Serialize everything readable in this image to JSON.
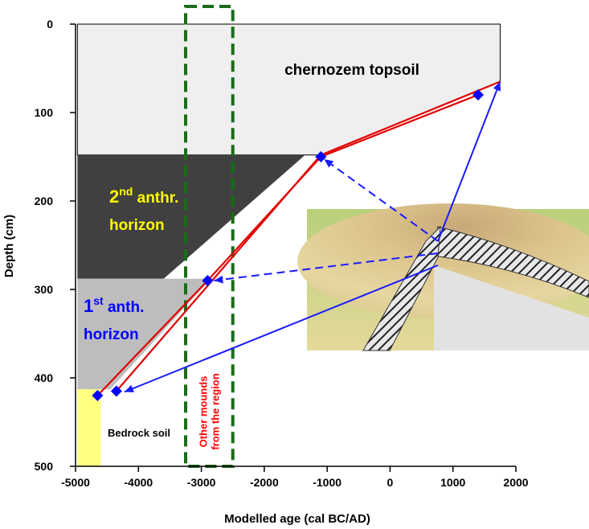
{
  "chart_data": {
    "type": "line",
    "xlabel": "Modelled age (cal BC/AD)",
    "ylabel": "Depth (cm)",
    "xlim": [
      -5000,
      2000
    ],
    "ylim": [
      0,
      500
    ],
    "y_inverted": true,
    "x_ticks": [
      "-5000",
      "-4000",
      "-3000",
      "-2000",
      "-1000",
      "0",
      "1000",
      "2000"
    ],
    "y_ticks": [
      "0",
      "100",
      "200",
      "300",
      "400",
      "500"
    ],
    "layers": [
      {
        "id": "topsoil",
        "label": "chernozem topsoil",
        "color": "#efefef",
        "polygon": [
          [
            -4970,
            0
          ],
          [
            1750,
            0
          ],
          [
            1750,
            65
          ],
          [
            -1100,
            148
          ],
          [
            -4970,
            148
          ]
        ]
      },
      {
        "id": "horizon2",
        "label_main": "2",
        "label_sup": "nd",
        "label_rest": " anthr.",
        "label_line2": "horizon",
        "label_color": "#ffff00",
        "color": "#404040",
        "polygon": [
          [
            -4970,
            148
          ],
          [
            -1350,
            148
          ],
          [
            -3600,
            288
          ],
          [
            -4970,
            288
          ]
        ]
      },
      {
        "id": "horizon1",
        "label_main": "1",
        "label_sup": "st",
        "label_rest": " anth.",
        "label_line2": "horizon",
        "label_color": "#0000ff",
        "color": "#bdbdbd",
        "polygon": [
          [
            -4970,
            288
          ],
          [
            -2850,
            288
          ],
          [
            -4450,
            413
          ],
          [
            -4970,
            413
          ]
        ]
      },
      {
        "id": "bedrock",
        "label": "Bedrock soil",
        "color": "#ffff80",
        "polygon": [
          [
            -4970,
            413
          ],
          [
            -4600,
            413
          ],
          [
            -4600,
            500
          ],
          [
            -4970,
            500
          ]
        ]
      }
    ],
    "series": [
      {
        "marker": "diamond",
        "color": "#0000ff",
        "points": [
          [
            1400,
            80
          ],
          [
            -1100,
            150
          ],
          [
            -2900,
            290
          ],
          [
            -4350,
            415
          ],
          [
            -4650,
            420
          ]
        ]
      }
    ],
    "red_lines": [
      [
        [
          1400,
          80
        ],
        [
          -1100,
          150
        ],
        [
          -2900,
          290
        ],
        [
          -4650,
          420
        ]
      ],
      [
        [
          1750,
          65
        ],
        [
          -1100,
          148
        ],
        [
          -4350,
          415
        ]
      ]
    ],
    "highlight_box": {
      "x": [
        -3250,
        -2500
      ],
      "y": [
        -20,
        500
      ],
      "color": "#1a6b1a",
      "label_line1": "Other mounds",
      "label_line2": "from the region",
      "label_color": "#ff0000"
    },
    "inset_labels": {
      "topsoil": "chernozem topsoil",
      "bedrock": "Bedrock soil"
    }
  }
}
